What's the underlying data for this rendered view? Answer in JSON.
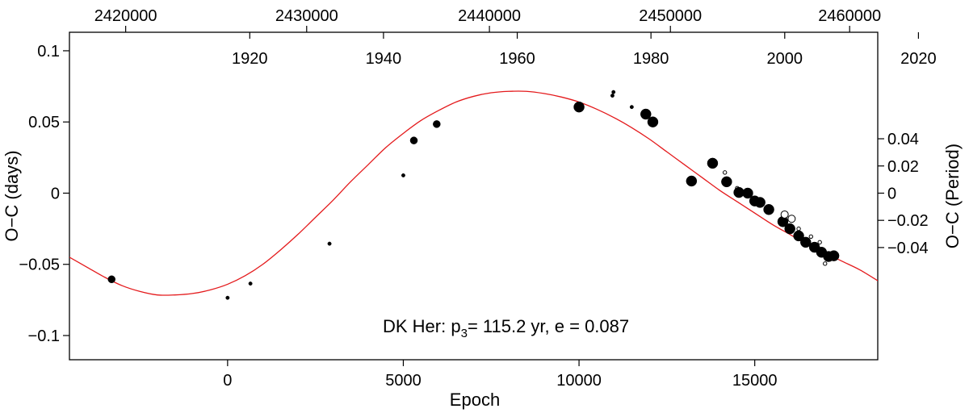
{
  "chart_data": {
    "type": "scatter",
    "title": "",
    "annotation": {
      "prefix": "DK Her:  p",
      "subscript": "3",
      "suffix": "= 115.2 yr,  e = 0.087"
    },
    "xlabel": "Epoch",
    "ylabel_left": "O−C (days)",
    "ylabel_right": "O−C (Period)",
    "xlim": [
      -4500,
      18500
    ],
    "ylim": [
      -0.117,
      0.113
    ],
    "x_ticks": [
      {
        "value": 0,
        "label": "0"
      },
      {
        "value": 5000,
        "label": "5000"
      },
      {
        "value": 10000,
        "label": "10000"
      },
      {
        "value": 15000,
        "label": "15000"
      }
    ],
    "y_left_ticks": [
      {
        "value": 0.1,
        "label": "0.1"
      },
      {
        "value": 0.05,
        "label": "0.05"
      },
      {
        "value": 0,
        "label": "0"
      },
      {
        "value": -0.05,
        "label": "−0.05"
      },
      {
        "value": -0.1,
        "label": "−0.1"
      }
    ],
    "y_right_ticks": [
      {
        "value": 0.0382,
        "label": "0.04"
      },
      {
        "value": 0.0191,
        "label": "0.02"
      },
      {
        "value": 0,
        "label": "0"
      },
      {
        "value": -0.0191,
        "label": "−0.02"
      },
      {
        "value": -0.0382,
        "label": "−0.04"
      }
    ],
    "top_year_ticks": [
      {
        "value": 631,
        "label": "1920"
      },
      {
        "value": 4436,
        "label": "1940"
      },
      {
        "value": 8242,
        "label": "1960"
      },
      {
        "value": 12047,
        "label": "1980"
      },
      {
        "value": 15853,
        "label": "2000"
      },
      {
        "value": 19658,
        "label": "2020"
      }
    ],
    "top_jd_ticks": [
      {
        "value": -2900,
        "label": "2420000"
      },
      {
        "value": 2250,
        "label": "2430000"
      },
      {
        "value": 7450,
        "label": "2440000"
      },
      {
        "value": 12600,
        "label": "2450000"
      },
      {
        "value": 17700,
        "label": "2460000"
      }
    ],
    "fit_curve": {
      "name": "",
      "color": "#e41a1c",
      "x": [
        -4500,
        -4000,
        -3500,
        -3000,
        -2500,
        -2000,
        -1500,
        -1000,
        -500,
        0,
        500,
        1000,
        1500,
        2000,
        2500,
        3000,
        3500,
        4000,
        4500,
        5000,
        5500,
        6000,
        6500,
        7000,
        7500,
        8000,
        8500,
        9000,
        9500,
        10000,
        10500,
        11000,
        11500,
        12000,
        12500,
        13000,
        13500,
        14000,
        14500,
        15000,
        15500,
        16000,
        16500,
        17000,
        17500,
        18000,
        18500
      ],
      "y": [
        -0.045,
        -0.052,
        -0.059,
        -0.065,
        -0.069,
        -0.0715,
        -0.0715,
        -0.0705,
        -0.068,
        -0.064,
        -0.058,
        -0.05,
        -0.04,
        -0.029,
        -0.017,
        -0.005,
        0.008,
        0.02,
        0.032,
        0.042,
        0.051,
        0.058,
        0.064,
        0.068,
        0.0705,
        0.0715,
        0.0715,
        0.07,
        0.0675,
        0.064,
        0.059,
        0.053,
        0.046,
        0.038,
        0.029,
        0.02,
        0.011,
        0.002,
        -0.006,
        -0.014,
        -0.022,
        -0.029,
        -0.036,
        -0.042,
        -0.048,
        -0.054,
        -0.0615
      ]
    },
    "points": [
      {
        "x": -3300,
        "y": -0.0605,
        "size": "large",
        "fill": "filled"
      },
      {
        "x": 0,
        "y": -0.0735,
        "size": "small",
        "fill": "filled"
      },
      {
        "x": 650,
        "y": -0.0635,
        "size": "small",
        "fill": "filled"
      },
      {
        "x": 2900,
        "y": -0.0355,
        "size": "small",
        "fill": "filled"
      },
      {
        "x": 5000,
        "y": 0.0125,
        "size": "small",
        "fill": "filled"
      },
      {
        "x": 5300,
        "y": 0.037,
        "size": "large",
        "fill": "filled"
      },
      {
        "x": 5950,
        "y": 0.0485,
        "size": "large",
        "fill": "filled"
      },
      {
        "x": 10000,
        "y": 0.0605,
        "size": "xlarge",
        "fill": "filled"
      },
      {
        "x": 10950,
        "y": 0.0685,
        "size": "small",
        "fill": "filled"
      },
      {
        "x": 10980,
        "y": 0.071,
        "size": "small",
        "fill": "filled"
      },
      {
        "x": 11500,
        "y": 0.0605,
        "size": "small",
        "fill": "filled"
      },
      {
        "x": 11900,
        "y": 0.0555,
        "size": "xlarge",
        "fill": "filled"
      },
      {
        "x": 12100,
        "y": 0.05,
        "size": "xlarge",
        "fill": "filled"
      },
      {
        "x": 13200,
        "y": 0.0085,
        "size": "xlarge",
        "fill": "filled"
      },
      {
        "x": 13800,
        "y": 0.021,
        "size": "xlarge",
        "fill": "filled"
      },
      {
        "x": 14150,
        "y": 0.0145,
        "size": "small",
        "fill": "open"
      },
      {
        "x": 14200,
        "y": 0.008,
        "size": "xlarge",
        "fill": "filled"
      },
      {
        "x": 14500,
        "y": 0.0035,
        "size": "small",
        "fill": "open"
      },
      {
        "x": 14550,
        "y": 0.0005,
        "size": "xlarge",
        "fill": "filled"
      },
      {
        "x": 14800,
        "y": 0.0,
        "size": "xlarge",
        "fill": "filled"
      },
      {
        "x": 15000,
        "y": -0.0055,
        "size": "xlarge",
        "fill": "filled"
      },
      {
        "x": 15150,
        "y": -0.0065,
        "size": "xlarge",
        "fill": "filled"
      },
      {
        "x": 15400,
        "y": -0.0115,
        "size": "xlarge",
        "fill": "filled"
      },
      {
        "x": 15800,
        "y": -0.02,
        "size": "xlarge",
        "fill": "filled"
      },
      {
        "x": 15850,
        "y": -0.015,
        "size": "large",
        "fill": "open"
      },
      {
        "x": 16050,
        "y": -0.018,
        "size": "large",
        "fill": "open"
      },
      {
        "x": 16000,
        "y": -0.025,
        "size": "xlarge",
        "fill": "filled"
      },
      {
        "x": 16250,
        "y": -0.03,
        "size": "xlarge",
        "fill": "filled"
      },
      {
        "x": 16250,
        "y": -0.025,
        "size": "small",
        "fill": "open"
      },
      {
        "x": 16450,
        "y": -0.0345,
        "size": "xlarge",
        "fill": "filled"
      },
      {
        "x": 16600,
        "y": -0.0305,
        "size": "small",
        "fill": "open"
      },
      {
        "x": 16700,
        "y": -0.038,
        "size": "xlarge",
        "fill": "filled"
      },
      {
        "x": 16850,
        "y": -0.0345,
        "size": "small",
        "fill": "open"
      },
      {
        "x": 16900,
        "y": -0.0415,
        "size": "xlarge",
        "fill": "filled"
      },
      {
        "x": 17100,
        "y": -0.0445,
        "size": "xlarge",
        "fill": "filled"
      },
      {
        "x": 17000,
        "y": -0.0495,
        "size": "small",
        "fill": "open"
      },
      {
        "x": 17250,
        "y": -0.044,
        "size": "xlarge",
        "fill": "filled"
      }
    ],
    "grid": false,
    "legend": "none"
  }
}
